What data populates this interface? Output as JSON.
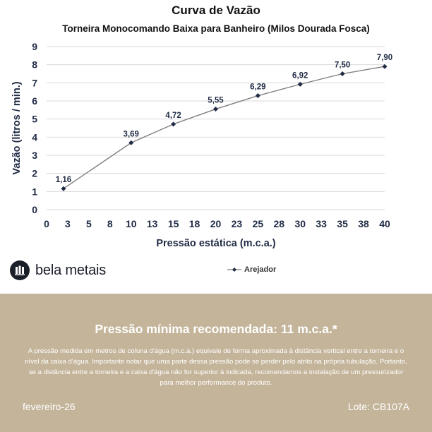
{
  "chart_data": {
    "type": "line",
    "title": "Curva de Vazão",
    "subtitle": "Torneira Monocomando Baixa para Banheiro (Milos Dourada Fosca)",
    "xlabel": "Pressão estática (m.c.a.)",
    "ylabel": "Vazão (litros / min.)",
    "x_ticks": [
      "0",
      "3",
      "5",
      "8",
      "10",
      "13",
      "15",
      "18",
      "20",
      "23",
      "25",
      "28",
      "30",
      "33",
      "35",
      "38",
      "40"
    ],
    "y_ticks": [
      "0",
      "1",
      "2",
      "3",
      "4",
      "5",
      "6",
      "7",
      "8",
      "9"
    ],
    "xlim": [
      0,
      40
    ],
    "ylim": [
      0,
      9
    ],
    "grid": true,
    "legend_position": "bottom",
    "series": [
      {
        "name": "Arejador",
        "x": [
          2,
          10,
          15,
          20,
          25,
          30,
          35,
          40
        ],
        "y": [
          1.16,
          3.69,
          4.72,
          5.55,
          6.29,
          6.92,
          7.5,
          7.9
        ],
        "labels": [
          "1,16",
          "3,69",
          "4,72",
          "5,55",
          "6,29",
          "6,92",
          "7,50",
          "7,90"
        ],
        "color": "#7f7f7f"
      }
    ]
  },
  "brand": {
    "name": "bela metais",
    "icon": "bela-metais-logo-icon"
  },
  "footer": {
    "title": "Pressão mínima recomendada: 11 m.c.a.*",
    "text": "A pressão medida em metros de coluna d'água (m.c.a.) equivale de forma aproximada à distância vertical entre a torneira e o nível da caixa d'água. Importante notar que uma parte dessa pressão pode se perder pelo atrito na própria tubulação. Portanto, se a distância entre a torneira e a caixa d'água não for superior à indicada, recomendamos a instalação de um pressurizador para melhor performance do produto.",
    "date": "fevereiro-26",
    "lote": "Lote: CB107A"
  },
  "colors": {
    "footer_bg": "#c4b49a",
    "axis_text": "#1f2a44",
    "title_text": "#111111",
    "line": "#7f7f7f",
    "marker": "#1f2a44",
    "grid": "#d9d9d9"
  }
}
